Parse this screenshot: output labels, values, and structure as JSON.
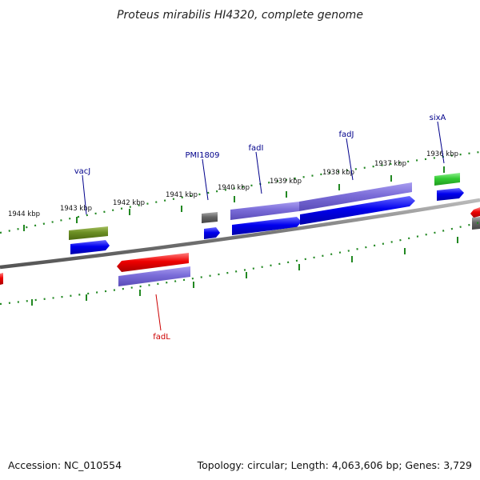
{
  "title": "Proteus mirabilis HI4320, complete genome",
  "footer": {
    "accession": "Accession: NC_010554",
    "summary": "Topology: circular; Length: 4,063,606 bp; Genes: 3,729"
  },
  "ticks": [
    "1944 kbp",
    "1943 kbp",
    "1942 kbp",
    "1941 kbp",
    "1940 kbp",
    "1939 kbp",
    "1938 kbp",
    "1937 kbp",
    "1936 kbp"
  ],
  "gene_labels": {
    "vacJ": "vacJ",
    "pmi1809": "PMI1809",
    "fadI": "fadI",
    "fadJ": "fadJ",
    "sixA": "sixA",
    "fadL": "fadL"
  },
  "colors": {
    "backbone": "#777777",
    "tick": "#228822",
    "cds": "#0000ee",
    "cog_violet": "#7a6cd8",
    "cog_olive": "#6b8e23",
    "cog_gray": "#666666",
    "cog_green": "#33cc33",
    "reverse_gene": "#ee0000",
    "label_forward": "#00008b",
    "label_reverse": "#cc0000"
  }
}
